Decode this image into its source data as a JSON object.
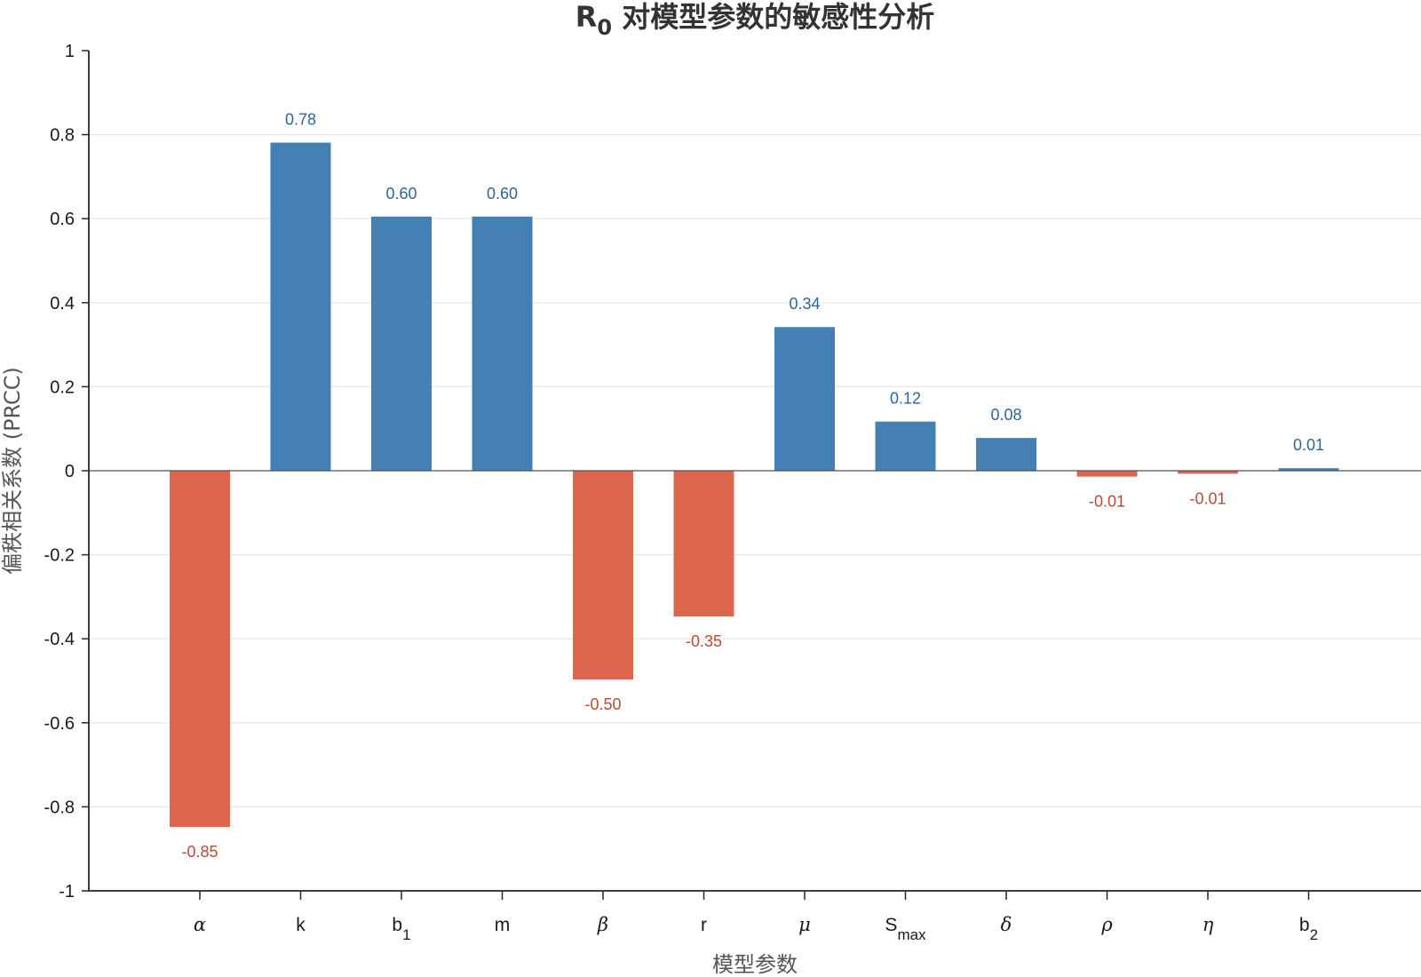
{
  "chart_data": {
    "type": "bar",
    "title": "R0 对模型参数的敏感性分析",
    "title_main": "R",
    "title_sub": "0",
    "title_rest": " 对模型参数的敏感性分析",
    "xlabel": "模型参数",
    "ylabel": "偏秩相关系数 (PRCC)",
    "ylim": [
      -1,
      1
    ],
    "yticks": [
      1,
      0.8,
      0.6,
      0.4,
      0.2,
      0,
      -0.2,
      -0.4,
      -0.6,
      -0.8,
      -1
    ],
    "ytick_labels": [
      "1",
      "0.8",
      "0.6",
      "0.4",
      "0.2",
      "0",
      "-0.2",
      "-0.4",
      "-0.6",
      "-0.8",
      "-1"
    ],
    "grid": true,
    "categories": [
      {
        "base": "α",
        "sub": "",
        "greek": true
      },
      {
        "base": "k",
        "sub": "",
        "greek": false
      },
      {
        "base": "b",
        "sub": "1",
        "greek": false
      },
      {
        "base": "m",
        "sub": "",
        "greek": false
      },
      {
        "base": "β",
        "sub": "",
        "greek": true
      },
      {
        "base": "r",
        "sub": "",
        "greek": false
      },
      {
        "base": "μ",
        "sub": "",
        "greek": true
      },
      {
        "base": "S",
        "sub": "max",
        "greek": false
      },
      {
        "base": "δ",
        "sub": "",
        "greek": true
      },
      {
        "base": "ρ",
        "sub": "",
        "greek": true
      },
      {
        "base": "η",
        "sub": "",
        "greek": true
      },
      {
        "base": "b",
        "sub": "2",
        "greek": false
      }
    ],
    "values": [
      -0.848,
      0.781,
      0.605,
      0.605,
      -0.497,
      -0.347,
      0.342,
      0.117,
      0.078,
      -0.014,
      -0.007,
      0.006
    ],
    "value_labels": [
      "-0.85",
      "0.78",
      "0.60",
      "0.60",
      "-0.50",
      "-0.35",
      "0.34",
      "0.12",
      "0.08",
      "-0.01",
      "-0.01",
      "0.01"
    ],
    "colors": {
      "positive_bar": "#4480b3",
      "negative_bar": "#dc674e",
      "positive_label": "#2f6596",
      "negative_label": "#b84c35",
      "grid": "#e6e6e6",
      "axis": "#262626"
    }
  }
}
